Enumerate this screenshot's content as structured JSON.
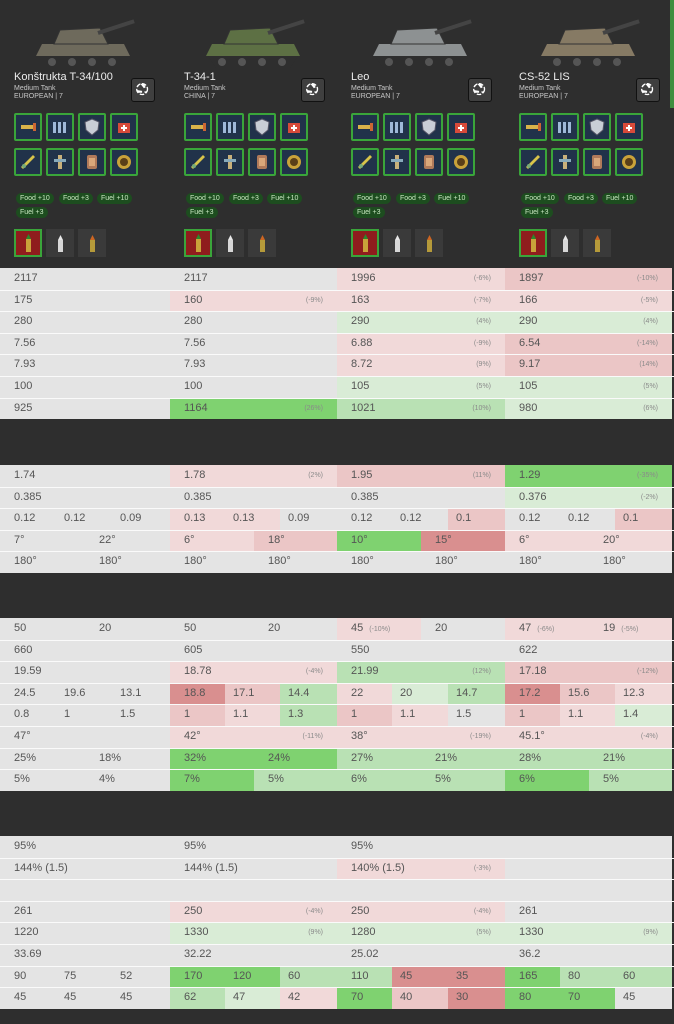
{
  "colors": {
    "page": "#2e2e2e",
    "neutral": "#e4e4e4",
    "pos1": "#d9ecd6",
    "pos2": "#b9e1b4",
    "pos3": "#7fd270",
    "neg1": "#f1d9d9",
    "neg2": "#ebc6c6",
    "neg3": "#d98f8f",
    "accent": "#3e8e3e"
  },
  "tanks": [
    {
      "name": "Konštrukta T-34/100",
      "class": "Medium Tank",
      "nation_tier": "EUROPEAN | 7",
      "equipment_icons": [
        "rammer-icon",
        "rangefinder-icon",
        "armor-plating-icon",
        "first-aid-kit-icon",
        "engine-tuning-icon",
        "vertical-stabilizer-icon",
        "spall-liner-icon",
        "improved-ammo-icon"
      ],
      "consumables": [
        "Food +10",
        "Food +3",
        "Fuel +10",
        "Fuel +3"
      ],
      "ammo": [
        "ap-shell-icon",
        "apcr-shell-icon",
        "he-shell-icon"
      ]
    },
    {
      "name": "T-34-1",
      "class": "Medium Tank",
      "nation_tier": "CHINA | 7",
      "equipment_icons": [
        "rammer-icon",
        "rangefinder-icon",
        "armor-plating-icon",
        "first-aid-kit-icon",
        "engine-tuning-icon",
        "vertical-stabilizer-icon",
        "spall-liner-icon",
        "improved-ammo-icon"
      ],
      "consumables": [
        "Food +10",
        "Food +3",
        "Fuel +10",
        "Fuel +3"
      ],
      "ammo": [
        "ap-shell-icon",
        "apcr-shell-icon",
        "he-shell-icon"
      ]
    },
    {
      "name": "Leo",
      "class": "Medium Tank",
      "nation_tier": "EUROPEAN | 7",
      "equipment_icons": [
        "rammer-icon",
        "rangefinder-icon",
        "armor-plating-icon",
        "first-aid-kit-icon",
        "engine-tuning-icon",
        "vertical-stabilizer-icon",
        "spall-liner-icon",
        "improved-ammo-icon"
      ],
      "consumables": [
        "Food +10",
        "Food +3",
        "Fuel +10",
        "Fuel +3"
      ],
      "ammo": [
        "ap-shell-icon",
        "apcr-shell-icon",
        "he-shell-icon"
      ]
    },
    {
      "name": "CS-52 LIS",
      "class": "Medium Tank",
      "nation_tier": "EUROPEAN | 7",
      "equipment_icons": [
        "rammer-icon",
        "rangefinder-icon",
        "armor-plating-icon",
        "first-aid-kit-icon",
        "engine-tuning-icon",
        "vertical-stabilizer-icon",
        "spall-liner-icon",
        "improved-ammo-icon"
      ],
      "consumables": [
        "Food +10",
        "Food +3",
        "Fuel +10",
        "Fuel +3"
      ],
      "ammo": [
        "ap-shell-icon",
        "apcr-shell-icon",
        "he-shell-icon"
      ]
    }
  ],
  "sections": [
    {
      "rows": [
        [
          [
            {
              "v": "2117"
            }
          ],
          [
            {
              "v": "2117"
            }
          ],
          [
            {
              "v": "1996",
              "d": "(-6%)",
              "c": "neg1"
            }
          ],
          [
            {
              "v": "1897",
              "d": "(-10%)",
              "c": "neg2"
            }
          ]
        ],
        [
          [
            {
              "v": "175"
            }
          ],
          [
            {
              "v": "160",
              "d": "(-9%)",
              "c": "neg1"
            }
          ],
          [
            {
              "v": "163",
              "d": "(-7%)",
              "c": "neg1"
            }
          ],
          [
            {
              "v": "166",
              "d": "(-5%)",
              "c": "neg1"
            }
          ]
        ],
        [
          [
            {
              "v": "280"
            }
          ],
          [
            {
              "v": "280"
            }
          ],
          [
            {
              "v": "290",
              "d": "(4%)",
              "c": "pos1"
            }
          ],
          [
            {
              "v": "290",
              "d": "(4%)",
              "c": "pos1"
            }
          ]
        ],
        [
          [
            {
              "v": "7.56"
            }
          ],
          [
            {
              "v": "7.56"
            }
          ],
          [
            {
              "v": "6.88",
              "d": "(-9%)",
              "c": "neg1"
            }
          ],
          [
            {
              "v": "6.54",
              "d": "(-14%)",
              "c": "neg2"
            }
          ]
        ],
        [
          [
            {
              "v": "7.93"
            }
          ],
          [
            {
              "v": "7.93"
            }
          ],
          [
            {
              "v": "8.72",
              "d": "(9%)",
              "c": "neg1"
            }
          ],
          [
            {
              "v": "9.17",
              "d": "(14%)",
              "c": "neg2"
            }
          ]
        ],
        [
          [
            {
              "v": "100"
            }
          ],
          [
            {
              "v": "100"
            }
          ],
          [
            {
              "v": "105",
              "d": "(5%)",
              "c": "pos1"
            }
          ],
          [
            {
              "v": "105",
              "d": "(5%)",
              "c": "pos1"
            }
          ]
        ],
        [
          [
            {
              "v": "925"
            }
          ],
          [
            {
              "v": "1164",
              "d": "(26%)",
              "c": "pos3"
            }
          ],
          [
            {
              "v": "1021",
              "d": "(10%)",
              "c": "pos2"
            }
          ],
          [
            {
              "v": "980",
              "d": "(6%)",
              "c": "pos1"
            }
          ]
        ]
      ]
    },
    {
      "rows": [
        [
          [
            {
              "v": "1.74"
            }
          ],
          [
            {
              "v": "1.78",
              "d": "(2%)",
              "c": "neg1"
            }
          ],
          [
            {
              "v": "1.95",
              "d": "(11%)",
              "c": "neg2"
            }
          ],
          [
            {
              "v": "1.29",
              "d": "(-35%)",
              "c": "pos3"
            }
          ]
        ],
        [
          [
            {
              "v": "0.385"
            }
          ],
          [
            {
              "v": "0.385"
            }
          ],
          [
            {
              "v": "0.385"
            }
          ],
          [
            {
              "v": "0.376",
              "d": "(-2%)",
              "c": "pos1"
            }
          ]
        ],
        [
          [
            {
              "v": "0.12"
            },
            {
              "v": "0.12"
            },
            {
              "v": "0.09"
            }
          ],
          [
            {
              "v": "0.13",
              "c": "neg1"
            },
            {
              "v": "0.13",
              "c": "neg1"
            },
            {
              "v": "0.09"
            }
          ],
          [
            {
              "v": "0.12"
            },
            {
              "v": "0.12"
            },
            {
              "v": "0.1",
              "c": "neg2"
            }
          ],
          [
            {
              "v": "0.12"
            },
            {
              "v": "0.12"
            },
            {
              "v": "0.1",
              "c": "neg2"
            }
          ]
        ],
        [
          [
            {
              "v": "7°"
            },
            {
              "v": "22°"
            }
          ],
          [
            {
              "v": "6°",
              "c": "neg1"
            },
            {
              "v": "18°",
              "c": "neg2"
            }
          ],
          [
            {
              "v": "10°",
              "c": "pos3"
            },
            {
              "v": "15°",
              "c": "neg3"
            }
          ],
          [
            {
              "v": "6°",
              "c": "neg1"
            },
            {
              "v": "20°",
              "c": "neg1"
            }
          ]
        ],
        [
          [
            {
              "v": "180°"
            },
            {
              "v": "180°"
            }
          ],
          [
            {
              "v": "180°"
            },
            {
              "v": "180°"
            }
          ],
          [
            {
              "v": "180°"
            },
            {
              "v": "180°"
            }
          ],
          [
            {
              "v": "180°"
            },
            {
              "v": "180°"
            }
          ]
        ]
      ]
    },
    {
      "rows": [
        [
          [
            {
              "v": "50"
            },
            {
              "v": "20"
            }
          ],
          [
            {
              "v": "50"
            },
            {
              "v": "20"
            }
          ],
          [
            {
              "v": "45",
              "d": "(-10%)",
              "c": "neg1"
            },
            {
              "v": "20"
            }
          ],
          [
            {
              "v": "47",
              "d": "(-6%)",
              "c": "neg1"
            },
            {
              "v": "19",
              "d": "(-5%)",
              "c": "neg1"
            }
          ]
        ],
        [
          [
            {
              "v": "660"
            }
          ],
          [
            {
              "v": "605"
            }
          ],
          [
            {
              "v": "550"
            }
          ],
          [
            {
              "v": "622"
            }
          ]
        ],
        [
          [
            {
              "v": "19.59"
            }
          ],
          [
            {
              "v": "18.78",
              "d": "(-4%)",
              "c": "neg1"
            }
          ],
          [
            {
              "v": "21.99",
              "d": "(12%)",
              "c": "pos2"
            }
          ],
          [
            {
              "v": "17.18",
              "d": "(-12%)",
              "c": "neg2"
            }
          ]
        ],
        [
          [
            {
              "v": "24.5"
            },
            {
              "v": "19.6"
            },
            {
              "v": "13.1"
            }
          ],
          [
            {
              "v": "18.8",
              "c": "neg3"
            },
            {
              "v": "17.1",
              "c": "neg2"
            },
            {
              "v": "14.4",
              "c": "pos2"
            }
          ],
          [
            {
              "v": "22",
              "c": "neg1"
            },
            {
              "v": "20",
              "c": "pos1"
            },
            {
              "v": "14.7",
              "c": "pos2"
            }
          ],
          [
            {
              "v": "17.2",
              "c": "neg3"
            },
            {
              "v": "15.6",
              "c": "neg2"
            },
            {
              "v": "12.3",
              "c": "neg1"
            }
          ]
        ],
        [
          [
            {
              "v": "0.8"
            },
            {
              "v": "1"
            },
            {
              "v": "1.5"
            }
          ],
          [
            {
              "v": "1",
              "c": "neg2"
            },
            {
              "v": "1.1",
              "c": "neg1"
            },
            {
              "v": "1.3",
              "c": "pos2"
            }
          ],
          [
            {
              "v": "1",
              "c": "neg2"
            },
            {
              "v": "1.1",
              "c": "neg1"
            },
            {
              "v": "1.5"
            }
          ],
          [
            {
              "v": "1",
              "c": "neg2"
            },
            {
              "v": "1.1",
              "c": "neg1"
            },
            {
              "v": "1.4",
              "c": "pos1"
            }
          ]
        ],
        [
          [
            {
              "v": "47°"
            }
          ],
          [
            {
              "v": "42°",
              "d": "(-11%)",
              "c": "neg1"
            }
          ],
          [
            {
              "v": "38°",
              "d": "(-19%)",
              "c": "neg1"
            }
          ],
          [
            {
              "v": "45.1°",
              "d": "(-4%)",
              "c": "neg1"
            }
          ]
        ],
        [
          [
            {
              "v": "25%"
            },
            {
              "v": "18%"
            }
          ],
          [
            {
              "v": "32%",
              "c": "pos3"
            },
            {
              "v": "24%",
              "c": "pos3"
            }
          ],
          [
            {
              "v": "27%",
              "c": "pos2"
            },
            {
              "v": "21%",
              "c": "pos2"
            }
          ],
          [
            {
              "v": "28%",
              "c": "pos2"
            },
            {
              "v": "21%",
              "c": "pos2"
            }
          ]
        ],
        [
          [
            {
              "v": "5%"
            },
            {
              "v": "4%"
            }
          ],
          [
            {
              "v": "7%",
              "c": "pos3"
            },
            {
              "v": "5%",
              "c": "pos2"
            }
          ],
          [
            {
              "v": "6%",
              "c": "pos2"
            },
            {
              "v": "5%",
              "c": "pos2"
            }
          ],
          [
            {
              "v": "6%",
              "c": "pos3"
            },
            {
              "v": "5%",
              "c": "pos2"
            }
          ]
        ]
      ]
    },
    {
      "rows": [
        [
          [
            {
              "v": "95%"
            }
          ],
          [
            {
              "v": "95%"
            }
          ],
          [
            {
              "v": "95%"
            }
          ],
          [
            {
              "v": ""
            }
          ]
        ],
        [
          [
            {
              "v": "144% (1.5)"
            }
          ],
          [
            {
              "v": "144% (1.5)"
            }
          ],
          [
            {
              "v": "140% (1.5)",
              "d": "(-3%)",
              "c": "neg1"
            }
          ],
          [
            {
              "v": ""
            }
          ]
        ],
        [
          [
            {
              "v": ""
            }
          ],
          [
            {
              "v": ""
            }
          ],
          [
            {
              "v": ""
            }
          ],
          [
            {
              "v": ""
            }
          ]
        ],
        [
          [
            {
              "v": "261"
            }
          ],
          [
            {
              "v": "250",
              "d": "(-4%)",
              "c": "neg1"
            }
          ],
          [
            {
              "v": "250",
              "d": "(-4%)",
              "c": "neg1"
            }
          ],
          [
            {
              "v": "261"
            }
          ]
        ],
        [
          [
            {
              "v": "1220"
            }
          ],
          [
            {
              "v": "1330",
              "d": "(9%)",
              "c": "pos1"
            }
          ],
          [
            {
              "v": "1280",
              "d": "(5%)",
              "c": "pos1"
            }
          ],
          [
            {
              "v": "1330",
              "d": "(9%)",
              "c": "pos1"
            }
          ]
        ],
        [
          [
            {
              "v": "33.69"
            }
          ],
          [
            {
              "v": "32.22"
            }
          ],
          [
            {
              "v": "25.02"
            }
          ],
          [
            {
              "v": "36.2"
            }
          ]
        ],
        [
          [
            {
              "v": "90"
            },
            {
              "v": "75"
            },
            {
              "v": "52"
            }
          ],
          [
            {
              "v": "170",
              "c": "pos3"
            },
            {
              "v": "120",
              "c": "pos3"
            },
            {
              "v": "60",
              "c": "pos2"
            }
          ],
          [
            {
              "v": "110",
              "c": "pos2"
            },
            {
              "v": "45",
              "c": "neg3"
            },
            {
              "v": "35",
              "c": "neg3"
            }
          ],
          [
            {
              "v": "165",
              "c": "pos3"
            },
            {
              "v": "80",
              "c": "pos2"
            },
            {
              "v": "60",
              "c": "pos2"
            }
          ]
        ],
        [
          [
            {
              "v": "45"
            },
            {
              "v": "45"
            },
            {
              "v": "45"
            }
          ],
          [
            {
              "v": "62",
              "c": "pos2"
            },
            {
              "v": "47",
              "c": "pos1"
            },
            {
              "v": "42",
              "c": "neg1"
            }
          ],
          [
            {
              "v": "70",
              "c": "pos3"
            },
            {
              "v": "40",
              "c": "neg2"
            },
            {
              "v": "30",
              "c": "neg3"
            }
          ],
          [
            {
              "v": "80",
              "c": "pos3"
            },
            {
              "v": "70",
              "c": "pos3"
            },
            {
              "v": "45"
            }
          ]
        ]
      ]
    }
  ]
}
